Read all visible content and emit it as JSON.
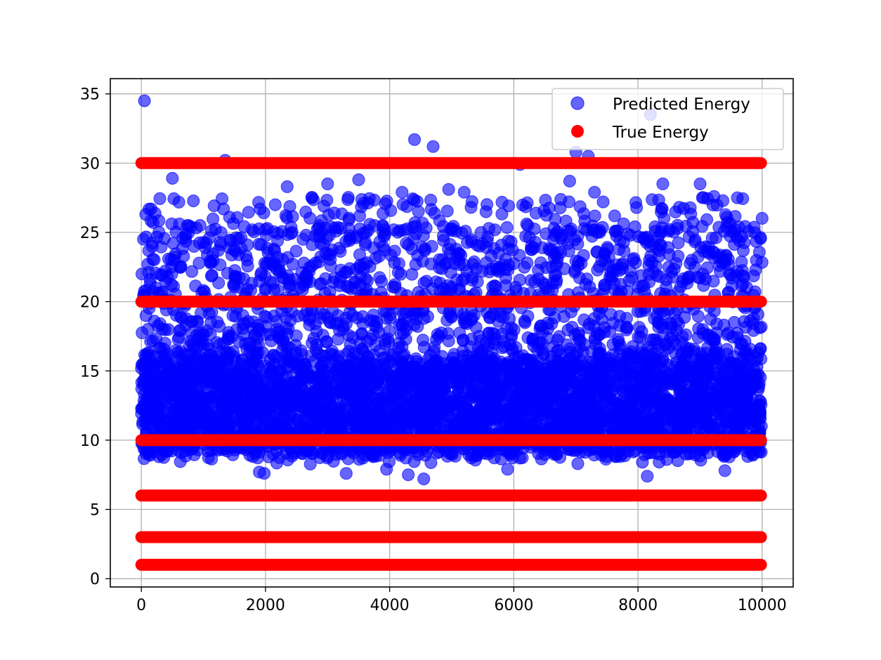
{
  "chart_data": {
    "type": "scatter",
    "title": "",
    "xlabel": "",
    "ylabel": "",
    "xlim": [
      -500,
      10500
    ],
    "ylim": [
      -0.6,
      36.1
    ],
    "xticks": [
      0,
      2000,
      4000,
      6000,
      8000,
      10000
    ],
    "xtick_labels": [
      "0",
      "2000",
      "4000",
      "6000",
      "8000",
      "10000"
    ],
    "yticks": [
      0,
      5,
      10,
      15,
      20,
      25,
      30,
      35
    ],
    "ytick_labels": [
      "0",
      "5",
      "10",
      "15",
      "20",
      "25",
      "30",
      "35"
    ],
    "grid": true,
    "legend_position": "upper-right",
    "series": [
      {
        "name": "Predicted Energy",
        "color": "#0000ff",
        "alpha": 0.6,
        "marker": "circle",
        "x_range": [
          0,
          10000
        ],
        "n_points": 10000,
        "y_min": 7.2,
        "y_max": 34.5,
        "dense_band": [
          9,
          16
        ],
        "outliers": [
          {
            "x": 50,
            "y": 34.5
          },
          {
            "x": 8200,
            "y": 33.5
          },
          {
            "x": 4400,
            "y": 31.7
          },
          {
            "x": 4700,
            "y": 31.2
          },
          {
            "x": 7000,
            "y": 30.8
          },
          {
            "x": 7200,
            "y": 30.5
          },
          {
            "x": 1350,
            "y": 30.2
          },
          {
            "x": 6100,
            "y": 29.9
          },
          {
            "x": 500,
            "y": 28.9
          },
          {
            "x": 3500,
            "y": 28.8
          },
          {
            "x": 6900,
            "y": 28.7
          },
          {
            "x": 3000,
            "y": 28.5
          },
          {
            "x": 8400,
            "y": 28.5
          },
          {
            "x": 9000,
            "y": 28.5
          },
          {
            "x": 2350,
            "y": 28.3
          },
          {
            "x": 4950,
            "y": 28.1
          },
          {
            "x": 4200,
            "y": 27.9
          },
          {
            "x": 7300,
            "y": 27.9
          },
          {
            "x": 5200,
            "y": 27.9
          },
          {
            "x": 9600,
            "y": 27.5
          },
          {
            "x": 4550,
            "y": 7.2
          },
          {
            "x": 8150,
            "y": 7.4
          },
          {
            "x": 4300,
            "y": 7.5
          },
          {
            "x": 3300,
            "y": 7.6
          },
          {
            "x": 1900,
            "y": 7.7
          },
          {
            "x": 1980,
            "y": 7.6
          },
          {
            "x": 9400,
            "y": 7.8
          },
          {
            "x": 5900,
            "y": 7.9
          },
          {
            "x": 3950,
            "y": 7.9
          }
        ]
      },
      {
        "name": "True Energy",
        "color": "#ff0000",
        "alpha": 1.0,
        "marker": "circle",
        "x_range": [
          0,
          10000
        ],
        "levels": [
          1,
          3,
          6,
          10,
          20,
          30
        ]
      }
    ]
  }
}
